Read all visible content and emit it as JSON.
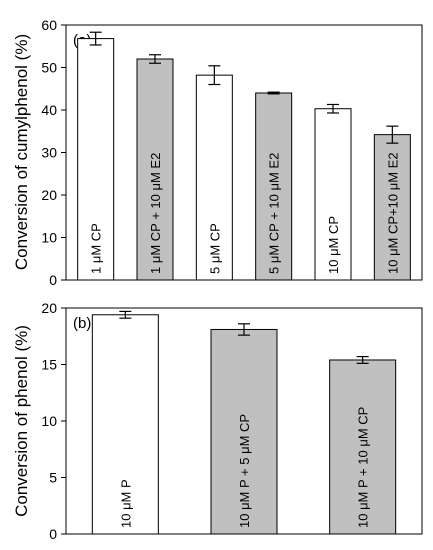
{
  "chart_data": [
    {
      "type": "bar",
      "panel_label": "(a)",
      "ylabel": "Conversion of cumylphenol (%)",
      "ylim": [
        0,
        60
      ],
      "yticks": [
        0,
        10,
        20,
        30,
        40,
        50,
        60
      ],
      "categories": [
        "1 μM CP",
        "1 μM CP + 10 μM E2",
        "5 μM CP",
        "5 μM CP + 10 μM E2",
        "10 μM CP",
        "10 μM CP+10 μM E2"
      ],
      "values": [
        56.8,
        52.0,
        48.2,
        44.0,
        40.3,
        34.2
      ],
      "errors": [
        1.5,
        1.0,
        2.2,
        0.2,
        1.0,
        2.0
      ],
      "bar_colors": [
        "#ffffff",
        "#c0c0c0",
        "#ffffff",
        "#c0c0c0",
        "#ffffff",
        "#c0c0c0"
      ],
      "grid": false
    },
    {
      "type": "bar",
      "panel_label": "(b)",
      "ylabel": "Conversion of phenol (%)",
      "ylim": [
        0,
        20
      ],
      "yticks": [
        0,
        5,
        10,
        15,
        20
      ],
      "categories": [
        "10 μM P",
        "10 μM P + 5 μM CP",
        "10 μM P + 10 μM CP"
      ],
      "values": [
        19.4,
        18.1,
        15.4
      ],
      "errors": [
        0.3,
        0.5,
        0.3
      ],
      "bar_colors": [
        "#ffffff",
        "#c0c0c0",
        "#c0c0c0"
      ],
      "grid": false
    }
  ]
}
